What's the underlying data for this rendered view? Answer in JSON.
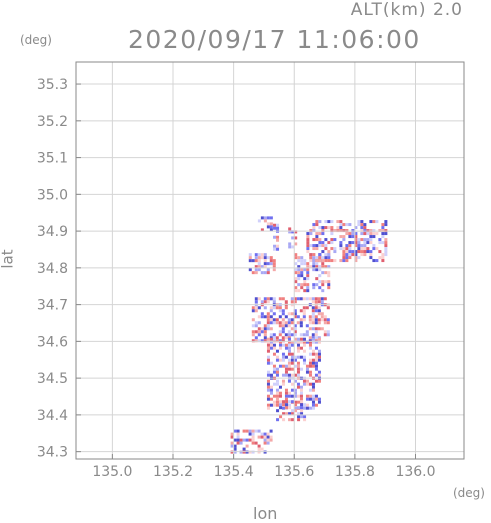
{
  "header": {
    "altitude_label": "ALT(km) 2.0",
    "timestamp": "2020/09/17 11:06:00"
  },
  "chart_data": {
    "type": "heatmap",
    "title": "2020/09/17 11:06:00",
    "xlabel": "lon",
    "ylabel": "lat",
    "x_unit": "(deg)",
    "y_unit": "(deg)",
    "xlim": [
      134.88,
      136.16
    ],
    "ylim": [
      34.28,
      35.36
    ],
    "x_ticks": [
      "135.0",
      "135.2",
      "135.4",
      "135.6",
      "135.8",
      "136.0"
    ],
    "y_ticks": [
      "34.3",
      "34.4",
      "34.5",
      "34.6",
      "34.7",
      "34.8",
      "34.9",
      "35.0",
      "35.1",
      "35.2",
      "35.3"
    ],
    "grid": true,
    "colors": {
      "positive": "#f08080",
      "negative": "#7070f0",
      "frame": "#8a8a8a"
    },
    "regions": [
      {
        "lon": [
          135.48,
          135.52
        ],
        "lat": [
          34.9,
          34.94
        ]
      },
      {
        "lon": [
          135.53,
          135.54
        ],
        "lat": [
          34.85,
          34.92
        ]
      },
      {
        "lon": [
          135.58,
          135.6
        ],
        "lat": [
          34.86,
          34.91
        ]
      },
      {
        "lon": [
          135.64,
          135.9
        ],
        "lat": [
          34.82,
          34.93
        ]
      },
      {
        "lon": [
          135.45,
          135.53
        ],
        "lat": [
          34.79,
          34.84
        ]
      },
      {
        "lon": [
          135.6,
          135.71
        ],
        "lat": [
          34.74,
          34.84
        ]
      },
      {
        "lon": [
          135.46,
          135.71
        ],
        "lat": [
          34.6,
          34.72
        ]
      },
      {
        "lon": [
          135.51,
          135.68
        ],
        "lat": [
          34.42,
          34.61
        ]
      },
      {
        "lon": [
          135.54,
          135.63
        ],
        "lat": [
          34.39,
          34.44
        ]
      },
      {
        "lon": [
          135.39,
          135.52
        ],
        "lat": [
          34.3,
          34.36
        ]
      }
    ]
  }
}
